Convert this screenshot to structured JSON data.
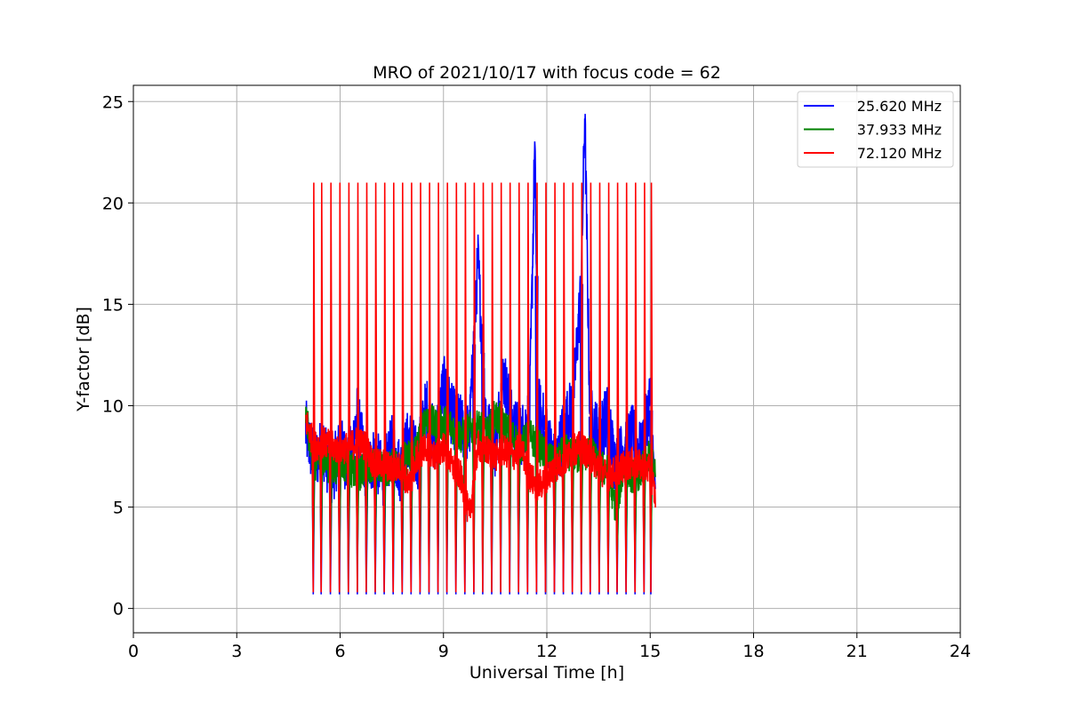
{
  "chart_data": {
    "type": "line",
    "title": "MRO of 2021/10/17 with focus code = 62",
    "xlabel": "Universal Time [h]",
    "ylabel": "Y-factor [dB]",
    "xlim": [
      0,
      24
    ],
    "ylim": [
      -1.2,
      25.8
    ],
    "xticks": [
      0,
      3,
      6,
      9,
      12,
      15,
      18,
      21,
      24
    ],
    "yticks": [
      0,
      5,
      10,
      15,
      20,
      25
    ],
    "grid": true,
    "legend_position": "top-right",
    "series": [
      {
        "name": "25.620 MHz",
        "color": "#0000ff",
        "x": [
          5.0,
          5.25,
          5.5,
          5.75,
          6.0,
          6.25,
          6.5,
          6.75,
          7.0,
          7.25,
          7.5,
          7.75,
          8.0,
          8.25,
          8.5,
          8.75,
          9.0,
          9.25,
          9.5,
          9.75,
          10.0,
          10.25,
          10.5,
          10.75,
          11.0,
          11.25,
          11.5,
          11.65,
          11.75,
          12.0,
          12.25,
          12.5,
          12.75,
          13.0,
          13.1,
          13.25,
          13.5,
          13.75,
          14.0,
          14.25,
          14.5,
          14.75,
          15.0,
          15.15
        ],
        "values": [
          8.8,
          7.2,
          8.0,
          6.5,
          8.0,
          7.0,
          9.5,
          6.8,
          7.5,
          6.5,
          8.0,
          6.8,
          8.5,
          7.2,
          10.0,
          8.0,
          11.0,
          9.5,
          9.0,
          8.5,
          17.2,
          9.0,
          8.0,
          11.5,
          9.0,
          8.5,
          9.5,
          22.8,
          10.0,
          8.5,
          7.0,
          9.0,
          10.0,
          16.0,
          24.5,
          9.5,
          8.5,
          9.5,
          7.0,
          8.0,
          8.5,
          7.5,
          10.5,
          5.0
        ]
      },
      {
        "name": "37.933 MHz",
        "color": "#008000",
        "x": [
          5.0,
          5.25,
          5.5,
          5.75,
          6.0,
          6.25,
          6.5,
          6.75,
          7.0,
          7.25,
          7.5,
          7.75,
          8.0,
          8.25,
          8.5,
          8.75,
          9.0,
          9.25,
          9.5,
          9.75,
          10.0,
          10.25,
          10.5,
          10.75,
          11.0,
          11.25,
          11.5,
          11.75,
          12.0,
          12.25,
          12.5,
          12.75,
          13.0,
          13.25,
          13.5,
          13.75,
          14.0,
          14.25,
          14.5,
          14.75,
          15.0,
          15.15
        ],
        "values": [
          9.5,
          7.0,
          7.5,
          6.8,
          7.2,
          7.0,
          6.5,
          7.0,
          7.2,
          6.8,
          7.0,
          7.2,
          7.5,
          8.0,
          9.5,
          9.0,
          9.2,
          9.0,
          8.5,
          8.8,
          9.0,
          8.5,
          9.5,
          9.0,
          8.5,
          8.0,
          8.5,
          8.0,
          7.5,
          7.0,
          7.8,
          7.5,
          7.5,
          7.8,
          7.0,
          6.8,
          5.0,
          7.0,
          6.5,
          6.8,
          7.5,
          6.5
        ]
      },
      {
        "name": "72.120 MHz",
        "color": "#ff0000",
        "x": [
          5.0,
          5.25,
          5.5,
          5.75,
          6.0,
          6.25,
          6.5,
          6.75,
          7.0,
          7.25,
          7.5,
          7.75,
          8.0,
          8.25,
          8.5,
          8.75,
          9.0,
          9.25,
          9.5,
          9.75,
          10.0,
          10.25,
          10.5,
          10.75,
          11.0,
          11.25,
          11.5,
          11.75,
          12.0,
          12.25,
          12.5,
          12.75,
          13.0,
          13.25,
          13.5,
          13.75,
          14.0,
          14.25,
          14.5,
          14.75,
          15.0,
          15.15
        ],
        "values": [
          9.3,
          8.0,
          8.2,
          8.0,
          7.8,
          8.0,
          8.2,
          8.0,
          7.0,
          7.2,
          6.8,
          7.0,
          6.0,
          7.5,
          8.0,
          7.5,
          8.0,
          7.0,
          6.5,
          4.5,
          8.0,
          7.8,
          7.5,
          7.8,
          7.5,
          8.0,
          6.5,
          6.0,
          6.5,
          7.0,
          7.2,
          7.8,
          8.0,
          7.5,
          7.0,
          6.5,
          6.8,
          7.0,
          7.2,
          7.0,
          6.8,
          5.5
        ]
      }
    ],
    "calibration_spikes": {
      "x": [
        5.22,
        5.45,
        5.72,
        5.98,
        6.24,
        6.5,
        6.76,
        7.02,
        7.28,
        7.54,
        7.8,
        8.06,
        8.32,
        8.58,
        8.84,
        9.1,
        9.36,
        9.62,
        9.88,
        10.14,
        10.4,
        10.66,
        10.92,
        11.18,
        11.44,
        11.7,
        11.96,
        12.22,
        12.48,
        12.74,
        13.0,
        13.26,
        13.52,
        13.78,
        14.04,
        14.3,
        14.56,
        14.82,
        15.02
      ],
      "peak": 21.0,
      "red_low": 0.8,
      "green_low": 2.2,
      "blue_low": 0.7
    }
  }
}
